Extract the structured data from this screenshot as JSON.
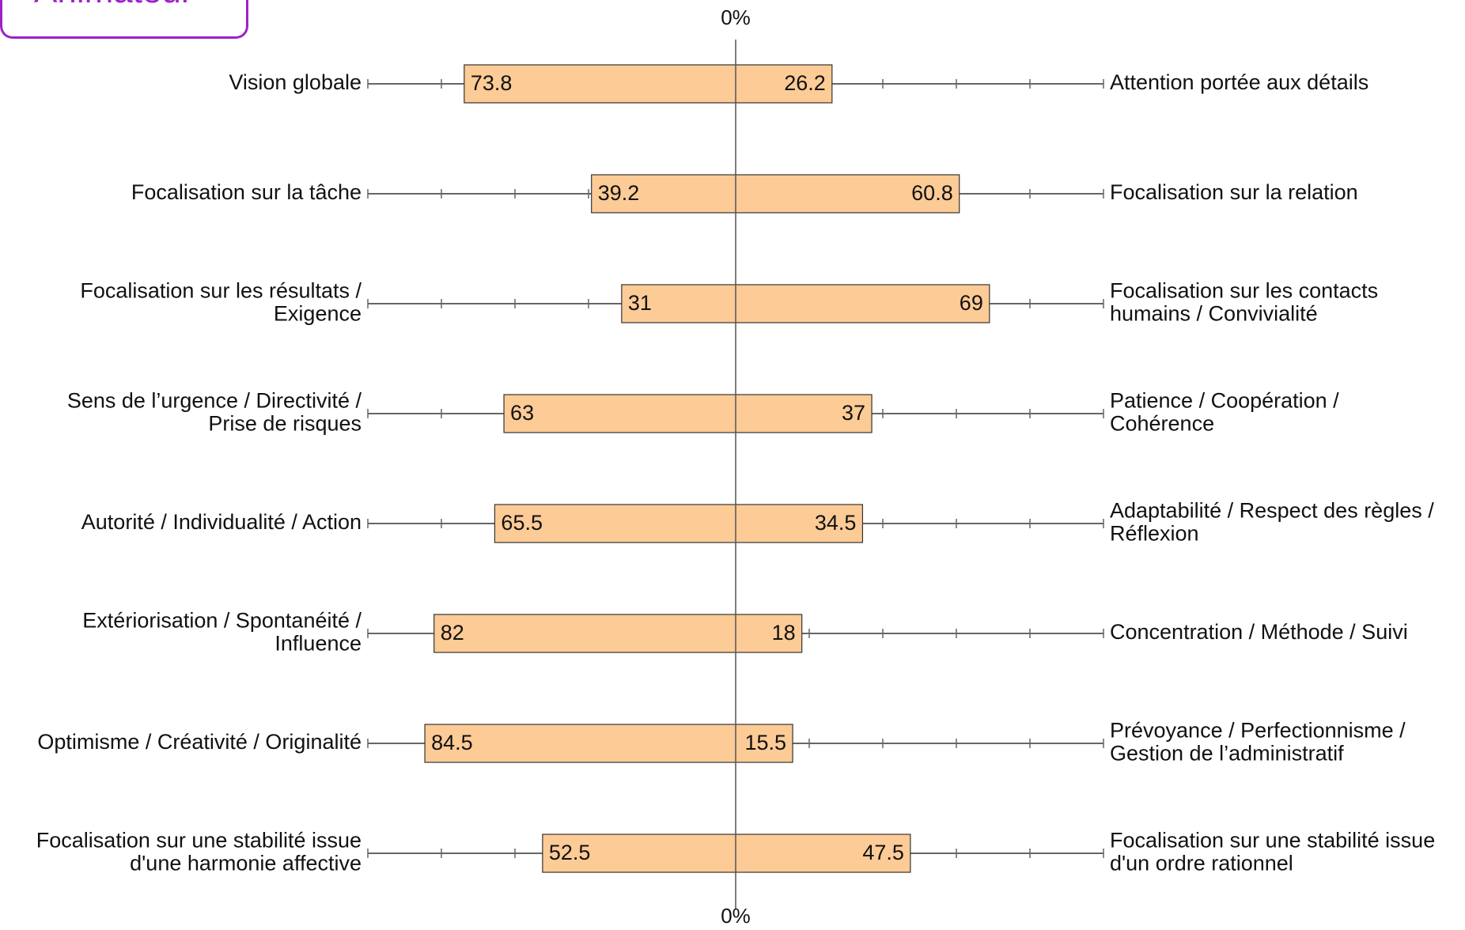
{
  "badge": {
    "text": "Animateur",
    "color": "#a020c8"
  },
  "chart_data": {
    "type": "bar",
    "orientation": "horizontal-diverging",
    "axis_label_top": "0%",
    "axis_label_bottom": "0%",
    "bar_color": "#fdcb96",
    "bar_border": "#333333",
    "whisker_color": "#666666",
    "rows": [
      {
        "left_label": [
          "Vision globale"
        ],
        "right_label": [
          "Attention portée aux détails"
        ],
        "left": 73.8,
        "right": 26.2,
        "left_text": "73.8",
        "right_text": "26.2"
      },
      {
        "left_label": [
          "Focalisation sur la tâche"
        ],
        "right_label": [
          "Focalisation sur la relation"
        ],
        "left": 39.2,
        "right": 60.8,
        "left_text": "39.2",
        "right_text": "60.8"
      },
      {
        "left_label": [
          "Focalisation sur les résultats /",
          "Exigence"
        ],
        "right_label": [
          "Focalisation sur les contacts",
          "humains / Convivialité"
        ],
        "left": 31,
        "right": 69,
        "left_text": "31",
        "right_text": "69"
      },
      {
        "left_label": [
          "Sens de l’urgence / Directivité /",
          "Prise de risques"
        ],
        "right_label": [
          "Patience / Coopération /",
          "Cohérence"
        ],
        "left": 63,
        "right": 37,
        "left_text": "63",
        "right_text": "37"
      },
      {
        "left_label": [
          "Autorité / Individualité / Action"
        ],
        "right_label": [
          "Adaptabilité / Respect des règles /",
          "Réflexion"
        ],
        "left": 65.5,
        "right": 34.5,
        "left_text": "65.5",
        "right_text": "34.5"
      },
      {
        "left_label": [
          "Extériorisation / Spontanéité /",
          "Influence"
        ],
        "right_label": [
          "Concentration / Méthode / Suivi"
        ],
        "left": 82,
        "right": 18,
        "left_text": "82",
        "right_text": "18"
      },
      {
        "left_label": [
          "Optimisme / Créativité / Originalité"
        ],
        "right_label": [
          "Prévoyance / Perfectionnisme /",
          "Gestion de l’administratif"
        ],
        "left": 84.5,
        "right": 15.5,
        "left_text": "84.5",
        "right_text": "15.5"
      },
      {
        "left_label": [
          "Focalisation sur une stabilité issue",
          "d'une harmonie affective"
        ],
        "right_label": [
          "Focalisation sur une stabilité issue",
          "d'un ordre rationnel"
        ],
        "left": 52.5,
        "right": 47.5,
        "left_text": "52.5",
        "right_text": "47.5"
      }
    ]
  }
}
